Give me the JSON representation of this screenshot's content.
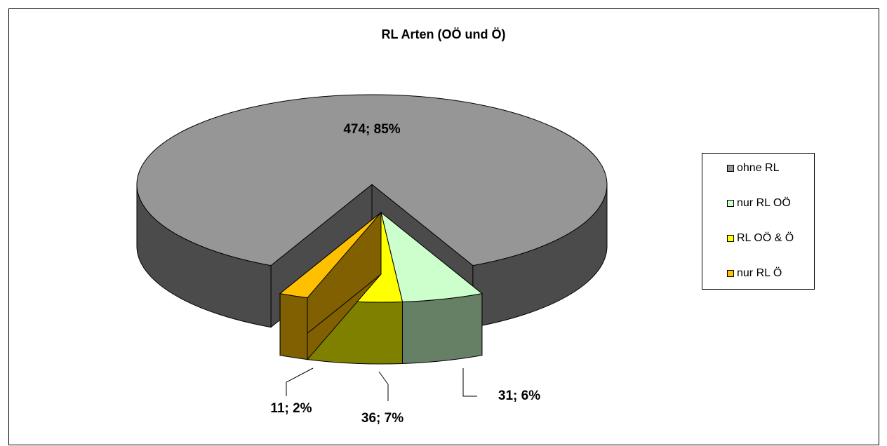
{
  "chart_data": {
    "type": "pie",
    "title": "RL Arten (OÖ und Ö)",
    "categories": [
      "ohne RL",
      "nur RL OÖ",
      "RL OÖ & Ö",
      "nur RL Ö"
    ],
    "values": [
      474,
      31,
      36,
      11
    ],
    "value_labels": [
      "474; 85%",
      "31; 6%",
      "36; 7%",
      "11; 2%"
    ],
    "colors": [
      "#969696",
      "#ccffcc",
      "#ffff00",
      "#ffc000"
    ],
    "legend": "right"
  }
}
